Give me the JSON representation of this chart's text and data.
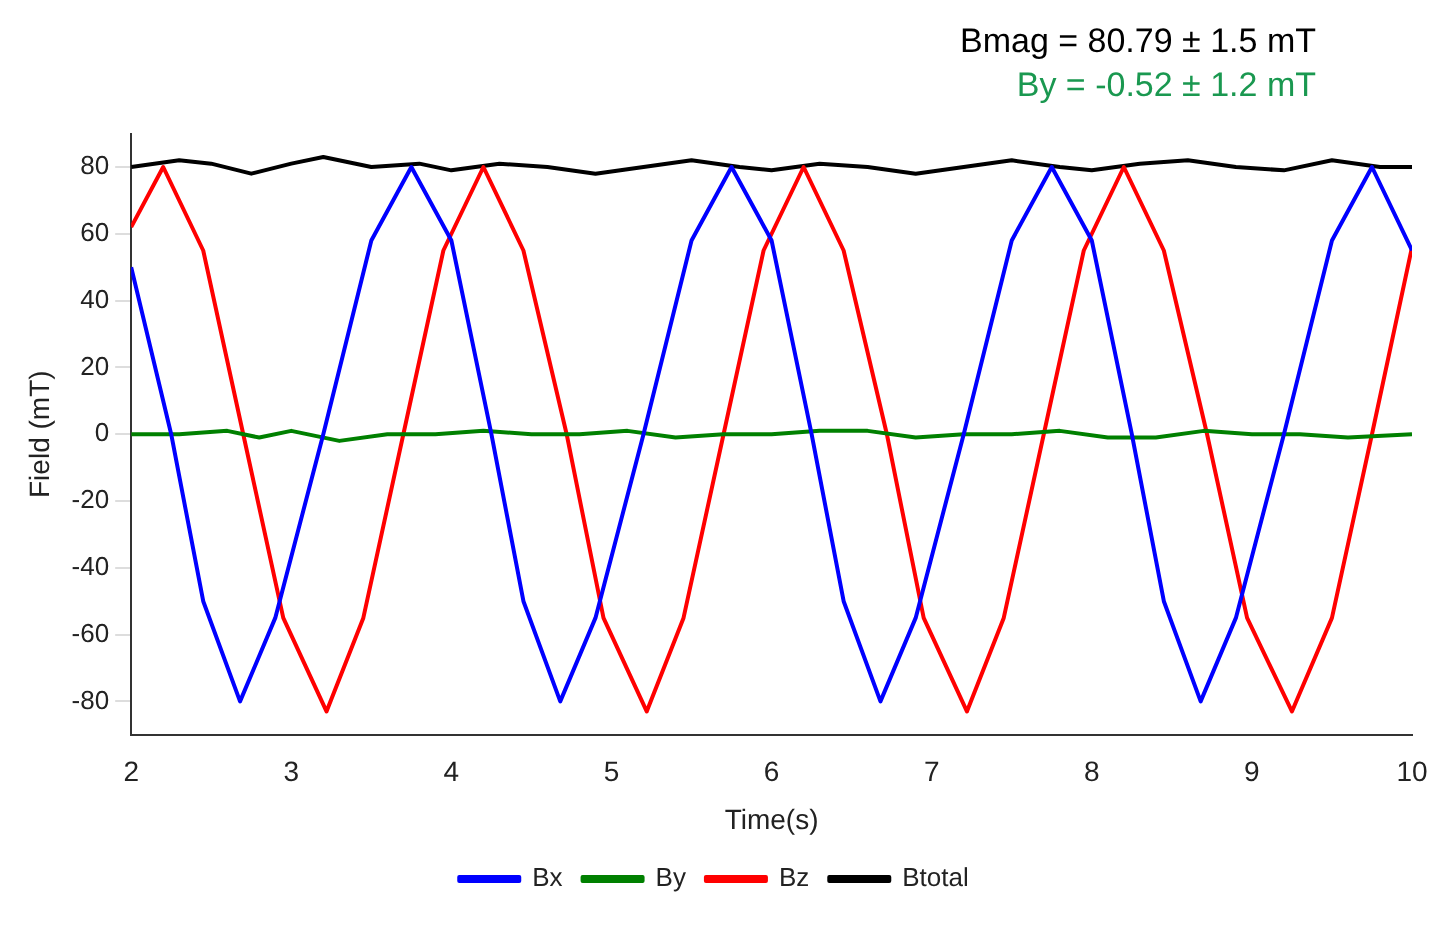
{
  "chart_data": {
    "type": "line",
    "xlabel": "Time(s)",
    "ylabel": "Field (mT)",
    "xlim": [
      2,
      10
    ],
    "ylim": [
      -90,
      90
    ],
    "xticks": [
      2,
      3,
      4,
      5,
      6,
      7,
      8,
      9,
      10
    ],
    "yticks": [
      -80,
      -60,
      -40,
      -20,
      0,
      20,
      40,
      60,
      80
    ],
    "grid": false,
    "legend": "bottom",
    "marker": "none",
    "line_style": "solid",
    "annotations": [
      "Bmag = 80.79 ± 1.5  mT",
      "By = -0.52 ± 1.2 mT"
    ],
    "series": [
      {
        "name": "Bx",
        "color": "#0000ff",
        "x": [
          2,
          2.25,
          2.45,
          2.68,
          2.9,
          3.2,
          3.5,
          3.75,
          4,
          4.25,
          4.45,
          4.68,
          4.9,
          5.2,
          5.5,
          5.75,
          6,
          6.25,
          6.45,
          6.68,
          6.9,
          7.2,
          7.5,
          7.75,
          8,
          8.25,
          8.45,
          8.68,
          8.9,
          9.2,
          9.5,
          9.75,
          10
        ],
        "values": [
          50,
          0,
          -50,
          -80,
          -55,
          0,
          58,
          80,
          58,
          0,
          -50,
          -80,
          -55,
          0,
          58,
          80,
          58,
          0,
          -50,
          -80,
          -55,
          0,
          58,
          80,
          58,
          0,
          -50,
          -80,
          -55,
          0,
          58,
          80,
          55
        ]
      },
      {
        "name": "By",
        "color": "#008000",
        "x": [
          2,
          2.3,
          2.6,
          2.8,
          3,
          3.3,
          3.6,
          3.9,
          4.2,
          4.5,
          4.8,
          5.1,
          5.4,
          5.7,
          6,
          6.3,
          6.6,
          6.9,
          7.2,
          7.5,
          7.8,
          8.1,
          8.4,
          8.7,
          9,
          9.3,
          9.6,
          10
        ],
        "values": [
          0,
          0,
          1,
          -1,
          1,
          -2,
          0,
          0,
          1,
          0,
          0,
          1,
          -1,
          0,
          0,
          1,
          1,
          -1,
          0,
          0,
          1,
          -1,
          -1,
          1,
          0,
          0,
          -1,
          0
        ]
      },
      {
        "name": "Bz",
        "color": "#ff0000",
        "x": [
          2,
          2.2,
          2.45,
          2.7,
          2.95,
          3.22,
          3.45,
          3.7,
          3.95,
          4.2,
          4.45,
          4.72,
          4.95,
          5.22,
          5.45,
          5.7,
          5.95,
          6.2,
          6.45,
          6.72,
          6.95,
          7.22,
          7.45,
          7.7,
          7.95,
          8.2,
          8.45,
          8.72,
          8.97,
          9.25,
          9.5,
          9.75,
          10
        ],
        "values": [
          62,
          80,
          55,
          0,
          -55,
          -83,
          -55,
          0,
          55,
          80,
          55,
          0,
          -55,
          -83,
          -55,
          0,
          55,
          80,
          55,
          0,
          -55,
          -83,
          -55,
          0,
          55,
          80,
          55,
          0,
          -55,
          -83,
          -55,
          0,
          56
        ]
      },
      {
        "name": "Btotal",
        "color": "#000000",
        "x": [
          2,
          2.3,
          2.5,
          2.75,
          3,
          3.2,
          3.5,
          3.8,
          4,
          4.3,
          4.6,
          4.9,
          5.2,
          5.5,
          5.8,
          6,
          6.3,
          6.6,
          6.9,
          7.2,
          7.5,
          7.8,
          8,
          8.3,
          8.6,
          8.9,
          9.2,
          9.5,
          9.8,
          10
        ],
        "values": [
          80,
          82,
          81,
          78,
          81,
          83,
          80,
          81,
          79,
          81,
          80,
          78,
          80,
          82,
          80,
          79,
          81,
          80,
          78,
          80,
          82,
          80,
          79,
          81,
          82,
          80,
          79,
          82,
          80,
          80
        ]
      }
    ]
  }
}
